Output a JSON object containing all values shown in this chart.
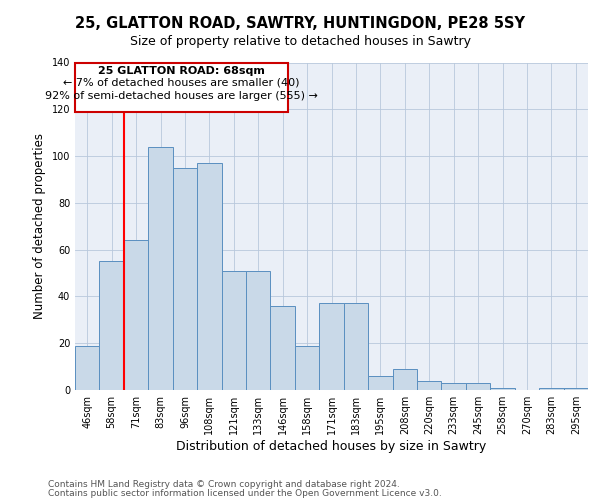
{
  "title1": "25, GLATTON ROAD, SAWTRY, HUNTINGDON, PE28 5SY",
  "title2": "Size of property relative to detached houses in Sawtry",
  "xlabel": "Distribution of detached houses by size in Sawtry",
  "ylabel": "Number of detached properties",
  "categories": [
    "46sqm",
    "58sqm",
    "71sqm",
    "83sqm",
    "96sqm",
    "108sqm",
    "121sqm",
    "133sqm",
    "146sqm",
    "158sqm",
    "171sqm",
    "183sqm",
    "195sqm",
    "208sqm",
    "220sqm",
    "233sqm",
    "245sqm",
    "258sqm",
    "270sqm",
    "283sqm",
    "295sqm"
  ],
  "values": [
    19,
    55,
    64,
    104,
    95,
    97,
    51,
    51,
    36,
    19,
    37,
    37,
    6,
    9,
    4,
    3,
    3,
    1,
    0,
    1,
    1
  ],
  "bar_color": "#c9d9e8",
  "bar_edge_color": "#5a8fc0",
  "red_line_index": 2,
  "annotation_line1": "25 GLATTON ROAD: 68sqm",
  "annotation_line2": "← 7% of detached houses are smaller (40)",
  "annotation_line3": "92% of semi-detached houses are larger (555) →",
  "annotation_box_color": "#ffffff",
  "annotation_box_edge_color": "#cc0000",
  "ylim": [
    0,
    140
  ],
  "yticks": [
    0,
    20,
    40,
    60,
    80,
    100,
    120,
    140
  ],
  "background_color": "#eaeff7",
  "footer1": "Contains HM Land Registry data © Crown copyright and database right 2024.",
  "footer2": "Contains public sector information licensed under the Open Government Licence v3.0.",
  "title1_fontsize": 10.5,
  "title2_fontsize": 9,
  "xlabel_fontsize": 9,
  "ylabel_fontsize": 8.5,
  "tick_fontsize": 7,
  "annot_fontsize": 8,
  "footer_fontsize": 6.5
}
